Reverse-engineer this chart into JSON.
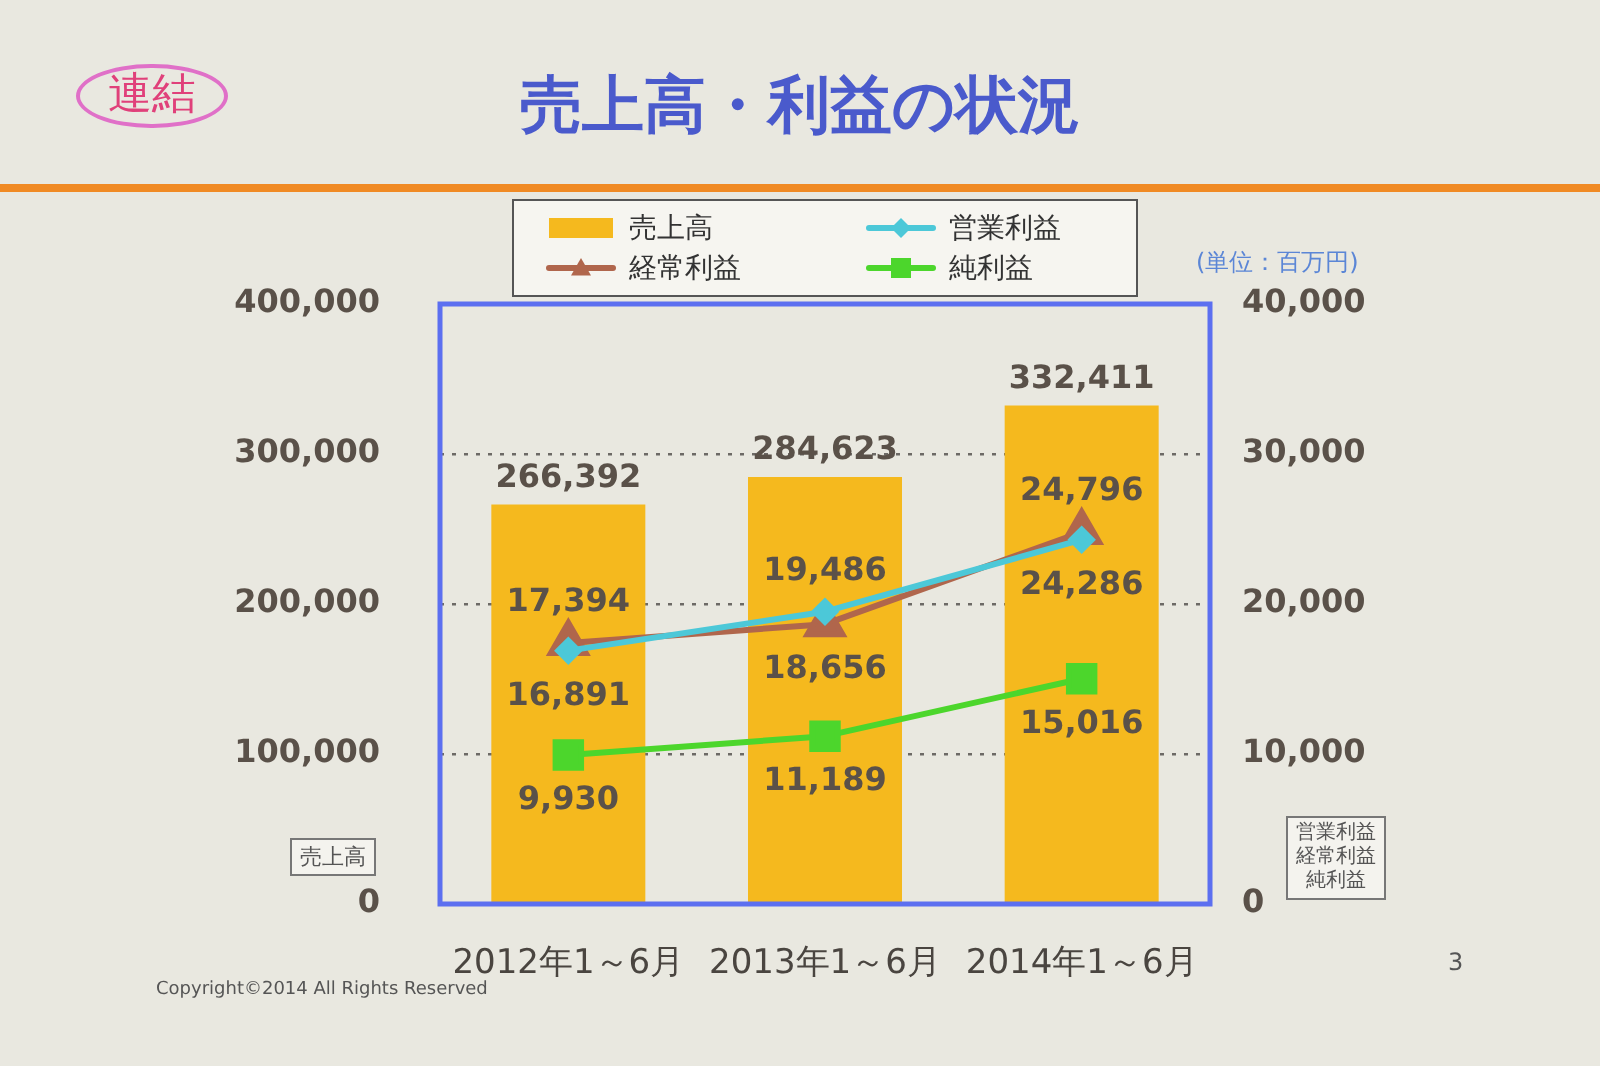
{
  "chart_data": {
    "type": "bar",
    "title": "売上高・利益の状況",
    "ylabel": "売上高",
    "y2label": "営業利益経常利益純利益",
    "categories": [
      "2012年1～6月",
      "2013年1～6月",
      "2014年1～6月"
    ],
    "series": [
      {
        "name": "売上高",
        "color": "#f5b91e",
        "values": [
          266392,
          284623,
          332411
        ],
        "value_labels": [
          "266,392",
          "284,623",
          "332,411"
        ]
      },
      {
        "name": "営業利益",
        "type": "line",
        "axis": "y2",
        "color": "#4cc8d8",
        "marker": "diamond",
        "values": [
          16891,
          19486,
          24286
        ],
        "value_labels": [
          "16,891",
          "19,486",
          "24,286"
        ]
      },
      {
        "name": "経常利益",
        "type": "line",
        "axis": "y2",
        "color": "#b0664c",
        "marker": "triangle",
        "values": [
          17394,
          18656,
          24796
        ],
        "value_labels": [
          "17,394",
          "18,656",
          "24,796"
        ]
      },
      {
        "name": "純利益",
        "type": "line",
        "axis": "y2",
        "color": "#4cd62c",
        "marker": "square",
        "values": [
          9930,
          11189,
          15016
        ],
        "value_labels": [
          "9,930",
          "11,189",
          "15,016"
        ]
      }
    ],
    "ylim": [
      0,
      400000
    ],
    "yticks": [
      0,
      {
        "value": 100000,
        "label": "100,000"
      },
      {
        "value": 200000,
        "label": "200,000"
      },
      {
        "value": 300000,
        "label": "300,000"
      },
      {
        "value": 400000,
        "label": "400,000"
      }
    ],
    "y2lim": [
      0,
      40000
    ],
    "y2ticks": [
      0,
      {
        "value": 10000,
        "label": "10,000"
      },
      {
        "value": 20000,
        "label": "20,000"
      },
      {
        "value": 30000,
        "label": "30,000"
      },
      {
        "value": 40000,
        "label": "40,000"
      }
    ],
    "grid": "y",
    "legend": "top",
    "annotations": [
      "連結",
      "(単位：百万円)",
      "Copyright©2014 All Rights Reserved",
      "3"
    ]
  }
}
